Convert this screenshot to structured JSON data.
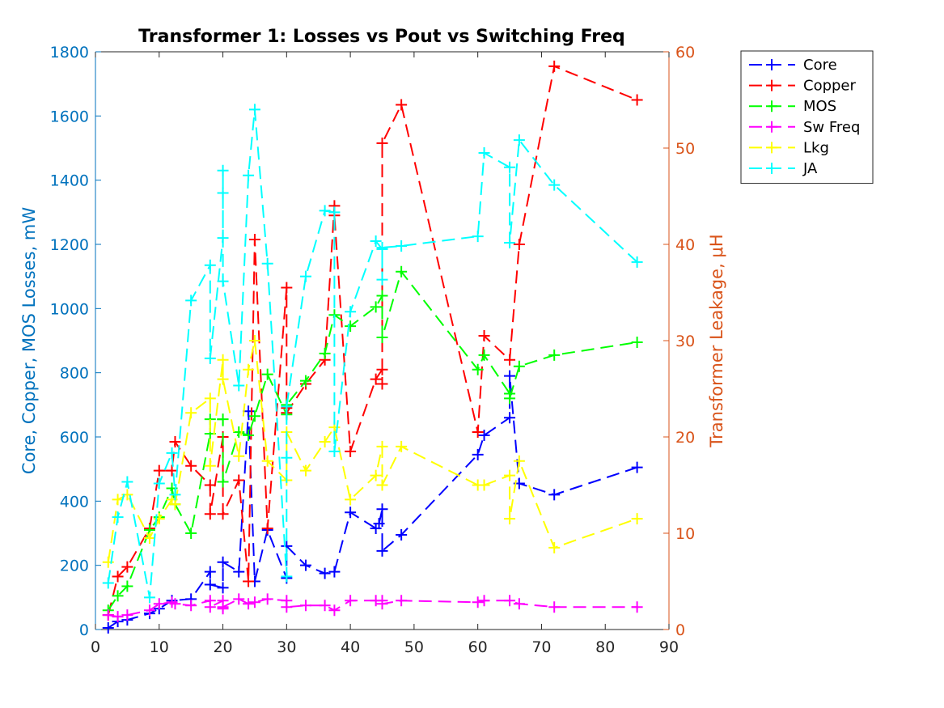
{
  "chart_data": {
    "type": "line",
    "title": "Transformer 1: Losses vs Pout vs Switching Freq",
    "ylabel_left": "Core, Copper, MOS Losses, mW",
    "ylabel_right": "Transformer Leakage, μH",
    "xlabel": "",
    "xlim": [
      0,
      90
    ],
    "ylim_left": [
      0,
      1800
    ],
    "ylim_right": [
      0,
      60
    ],
    "x_ticks": [
      "0",
      "10",
      "20",
      "30",
      "40",
      "50",
      "60",
      "70",
      "80",
      "90"
    ],
    "y_ticks_left": [
      "0",
      "200",
      "400",
      "600",
      "800",
      "1000",
      "1200",
      "1400",
      "1600",
      "1800"
    ],
    "y_ticks_right": [
      "0",
      "10",
      "20",
      "30",
      "40",
      "50",
      "60"
    ],
    "grid": false,
    "legend_position": "outside-right",
    "colors": {
      "left_axis": "#0072BD",
      "right_axis": "#D95319"
    },
    "series": [
      {
        "name": "Core",
        "color": "#0000ff",
        "axis": "left",
        "x": [
          2,
          3.5,
          5,
          8.5,
          10,
          12,
          15,
          18,
          18,
          20,
          20,
          22.5,
          24,
          25,
          27,
          30,
          30,
          33,
          36,
          37.5,
          40,
          44,
          44.5,
          45,
          45,
          48,
          60,
          61,
          65,
          65,
          66.5,
          72,
          85
        ],
        "y": [
          5,
          25,
          30,
          50,
          65,
          90,
          95,
          180,
          140,
          130,
          210,
          180,
          680,
          150,
          310,
          160,
          260,
          200,
          175,
          180,
          365,
          315,
          330,
          375,
          245,
          295,
          545,
          605,
          660,
          790,
          455,
          420,
          505
        ]
      },
      {
        "name": "Copper",
        "color": "#ff0000",
        "axis": "right",
        "x": [
          2,
          3.5,
          5,
          8.5,
          10,
          12,
          12.5,
          15,
          18,
          18,
          20,
          20,
          22.5,
          24,
          25,
          27,
          30,
          30,
          30,
          33,
          36,
          37.5,
          37.5,
          40,
          44,
          45,
          45,
          45,
          48,
          60,
          61,
          65,
          66.5,
          72,
          85
        ],
        "y": [
          1.5,
          5.5,
          6.5,
          10.5,
          16.5,
          16.5,
          19.5,
          17,
          15,
          12,
          20,
          12,
          15.5,
          5,
          40.5,
          10.5,
          35.5,
          23,
          22.5,
          25.5,
          28,
          44,
          43,
          18.5,
          26,
          27,
          25.5,
          50.5,
          54.5,
          20.5,
          30.5,
          28,
          40,
          58.5,
          55
        ]
      },
      {
        "name": "MOS",
        "color": "#00ff00",
        "axis": "left",
        "x": [
          2,
          3.5,
          5,
          8.5,
          10,
          12,
          12.5,
          15,
          18,
          18,
          20,
          20,
          22.5,
          24,
          25,
          27,
          30,
          30,
          33,
          36,
          37.5,
          40,
          44,
          45,
          45,
          48,
          60,
          61,
          65,
          65,
          66.5,
          72,
          85
        ],
        "y": [
          60,
          105,
          135,
          310,
          350,
          440,
          390,
          300,
          610,
          655,
          655,
          460,
          615,
          605,
          665,
          795,
          670,
          700,
          775,
          860,
          980,
          945,
          1005,
          1040,
          910,
          1115,
          810,
          855,
          735,
          720,
          820,
          855,
          895
        ]
      },
      {
        "name": "Sw Freq",
        "color": "#ff00ff",
        "axis": "left",
        "x": [
          2,
          3.5,
          5,
          8.5,
          10,
          12,
          12.5,
          15,
          18,
          18,
          20,
          20,
          20,
          22.5,
          24,
          25,
          27,
          30,
          30,
          33,
          36,
          37.5,
          40,
          44,
          45,
          45,
          48,
          60,
          61,
          65,
          66.5,
          72,
          85
        ],
        "y": [
          45,
          40,
          45,
          60,
          80,
          85,
          80,
          75,
          90,
          70,
          90,
          65,
          70,
          95,
          80,
          85,
          95,
          90,
          70,
          75,
          75,
          60,
          90,
          90,
          90,
          80,
          90,
          85,
          90,
          90,
          80,
          70,
          70
        ]
      },
      {
        "name": "Lkg",
        "color": "#ffff00",
        "axis": "right",
        "x": [
          2,
          3.5,
          5,
          8.5,
          10,
          12,
          12.5,
          15,
          18,
          18,
          20,
          20,
          22.5,
          24,
          25,
          27,
          30,
          30,
          33,
          36,
          37.5,
          40,
          44,
          45,
          45,
          48,
          60,
          61,
          65,
          65,
          66.5,
          72,
          85
        ],
        "y": [
          7,
          13.5,
          14,
          9.5,
          11.5,
          13.5,
          13,
          22.5,
          24,
          17,
          28,
          26,
          18,
          27,
          30,
          17.5,
          15.5,
          20.5,
          16.5,
          19.5,
          21,
          13.5,
          16,
          19,
          15,
          19,
          15,
          15,
          16,
          11.5,
          17.5,
          8.5,
          11.5
        ]
      },
      {
        "name": "JA",
        "color": "#00ffff",
        "axis": "left",
        "x": [
          2,
          3.5,
          5,
          8.5,
          10,
          12,
          12.5,
          15,
          18,
          18,
          20,
          20,
          20,
          20,
          22.5,
          24,
          25,
          27,
          30,
          30,
          30,
          33,
          36,
          37.5,
          37.5,
          40,
          44,
          45,
          45,
          45,
          48,
          60,
          61,
          65,
          65,
          66.5,
          72,
          85
        ],
        "y": [
          145,
          350,
          460,
          100,
          455,
          550,
          420,
          1025,
          1135,
          845,
          1220,
          1430,
          1360,
          1085,
          760,
          1415,
          1620,
          1140,
          165,
          535,
          695,
          1100,
          1305,
          1300,
          555,
          990,
          1210,
          1185,
          1090,
          1190,
          1195,
          1225,
          1485,
          1440,
          1205,
          1525,
          1385,
          1145
        ]
      }
    ]
  }
}
